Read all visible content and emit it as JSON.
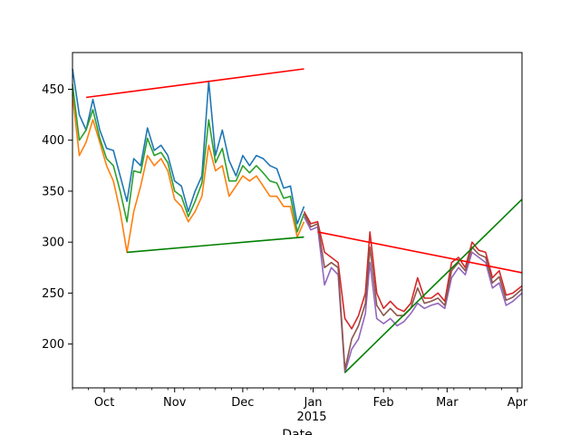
{
  "chart_data": {
    "type": "line",
    "xlabel": "Date",
    "x_year_label": "2015",
    "x_ticks": [
      {
        "label": "Oct",
        "date": "2014-10-01"
      },
      {
        "label": "Nov",
        "date": "2014-11-01"
      },
      {
        "label": "Dec",
        "date": "2014-12-01"
      },
      {
        "label": "Jan",
        "date": "2015-01-01"
      },
      {
        "label": "Feb",
        "date": "2015-02-01"
      },
      {
        "label": "Mar",
        "date": "2015-03-01"
      },
      {
        "label": "Apr",
        "date": "2015-04-01"
      }
    ],
    "xlim": [
      "2014-09-17",
      "2015-04-03"
    ],
    "y_ticks": [
      200,
      250,
      300,
      350,
      400,
      450
    ],
    "ylim": [
      157,
      486
    ],
    "grid": false,
    "series": [
      {
        "color": "#1f77b4",
        "x": [
          "2014-09-17",
          "2014-09-20",
          "2014-09-23",
          "2014-09-26",
          "2014-09-29",
          "2014-10-02",
          "2014-10-05",
          "2014-10-08",
          "2014-10-11",
          "2014-10-14",
          "2014-10-17",
          "2014-10-20",
          "2014-10-23",
          "2014-10-26",
          "2014-10-29",
          "2014-11-01",
          "2014-11-04",
          "2014-11-07",
          "2014-11-10",
          "2014-11-13",
          "2014-11-16",
          "2014-11-19",
          "2014-11-22",
          "2014-11-25",
          "2014-11-28",
          "2014-12-01",
          "2014-12-04",
          "2014-12-07",
          "2014-12-10",
          "2014-12-13",
          "2014-12-16",
          "2014-12-19",
          "2014-12-22",
          "2014-12-25",
          "2014-12-28"
        ],
        "values": [
          470,
          425,
          410,
          440,
          410,
          392,
          390,
          365,
          340,
          382,
          375,
          412,
          390,
          395,
          385,
          360,
          355,
          330,
          350,
          365,
          458,
          385,
          410,
          380,
          365,
          385,
          375,
          385,
          382,
          375,
          372,
          353,
          355,
          318,
          335
        ]
      },
      {
        "color": "#ff7f0e",
        "x": [
          "2014-09-17",
          "2014-09-20",
          "2014-09-23",
          "2014-09-26",
          "2014-09-29",
          "2014-10-02",
          "2014-10-05",
          "2014-10-08",
          "2014-10-11",
          "2014-10-14",
          "2014-10-17",
          "2014-10-20",
          "2014-10-23",
          "2014-10-26",
          "2014-10-29",
          "2014-11-01",
          "2014-11-04",
          "2014-11-07",
          "2014-11-10",
          "2014-11-13",
          "2014-11-16",
          "2014-11-19",
          "2014-11-22",
          "2014-11-25",
          "2014-11-28",
          "2014-12-01",
          "2014-12-04",
          "2014-12-07",
          "2014-12-10",
          "2014-12-13",
          "2014-12-16",
          "2014-12-19",
          "2014-12-22",
          "2014-12-25",
          "2014-12-28"
        ],
        "values": [
          445,
          385,
          398,
          420,
          398,
          375,
          360,
          330,
          290,
          330,
          355,
          385,
          375,
          382,
          370,
          342,
          335,
          320,
          330,
          345,
          395,
          370,
          375,
          345,
          355,
          365,
          360,
          365,
          355,
          345,
          345,
          335,
          335,
          305,
          320
        ]
      },
      {
        "color": "#2ca02c",
        "x": [
          "2014-09-17",
          "2014-09-20",
          "2014-09-23",
          "2014-09-26",
          "2014-09-29",
          "2014-10-02",
          "2014-10-05",
          "2014-10-08",
          "2014-10-11",
          "2014-10-14",
          "2014-10-17",
          "2014-10-20",
          "2014-10-23",
          "2014-10-26",
          "2014-10-29",
          "2014-11-01",
          "2014-11-04",
          "2014-11-07",
          "2014-11-10",
          "2014-11-13",
          "2014-11-16",
          "2014-11-19",
          "2014-11-22",
          "2014-11-25",
          "2014-11-28",
          "2014-12-01",
          "2014-12-04",
          "2014-12-07",
          "2014-12-10",
          "2014-12-13",
          "2014-12-16",
          "2014-12-19",
          "2014-12-22",
          "2014-12-25",
          "2014-12-28"
        ],
        "values": [
          455,
          400,
          410,
          430,
          402,
          382,
          375,
          350,
          320,
          370,
          368,
          402,
          385,
          388,
          378,
          350,
          345,
          325,
          340,
          358,
          420,
          378,
          392,
          360,
          360,
          375,
          368,
          375,
          368,
          360,
          358,
          343,
          345,
          310,
          328
        ]
      },
      {
        "color": "#d62728",
        "x": [
          "2014-12-28",
          "2014-12-31",
          "2015-01-03",
          "2015-01-06",
          "2015-01-09",
          "2015-01-12",
          "2015-01-15",
          "2015-01-18",
          "2015-01-21",
          "2015-01-24",
          "2015-01-26",
          "2015-01-29",
          "2015-02-01",
          "2015-02-04",
          "2015-02-07",
          "2015-02-10",
          "2015-02-13",
          "2015-02-16",
          "2015-02-19",
          "2015-02-22",
          "2015-02-25",
          "2015-02-28",
          "2015-03-03",
          "2015-03-06",
          "2015-03-09",
          "2015-03-12",
          "2015-03-15",
          "2015-03-18",
          "2015-03-21",
          "2015-03-24",
          "2015-03-27",
          "2015-03-30",
          "2015-04-03"
        ],
        "values": [
          330,
          318,
          320,
          290,
          285,
          280,
          225,
          215,
          228,
          250,
          310,
          250,
          235,
          242,
          235,
          232,
          240,
          265,
          245,
          245,
          250,
          242,
          280,
          285,
          275,
          300,
          292,
          290,
          265,
          272,
          248,
          250,
          257
        ]
      },
      {
        "color": "#9467bd",
        "x": [
          "2014-12-28",
          "2014-12-31",
          "2015-01-03",
          "2015-01-06",
          "2015-01-09",
          "2015-01-12",
          "2015-01-15",
          "2015-01-18",
          "2015-01-21",
          "2015-01-24",
          "2015-01-26",
          "2015-01-29",
          "2015-02-01",
          "2015-02-04",
          "2015-02-07",
          "2015-02-10",
          "2015-02-13",
          "2015-02-16",
          "2015-02-19",
          "2015-02-22",
          "2015-02-25",
          "2015-02-28",
          "2015-03-03",
          "2015-03-06",
          "2015-03-09",
          "2015-03-12",
          "2015-03-15",
          "2015-03-18",
          "2015-03-21",
          "2015-03-24",
          "2015-03-27",
          "2015-03-30",
          "2015-04-03"
        ],
        "values": [
          325,
          312,
          315,
          258,
          275,
          268,
          172,
          195,
          205,
          230,
          280,
          225,
          220,
          225,
          218,
          222,
          230,
          240,
          235,
          238,
          240,
          235,
          265,
          275,
          268,
          290,
          285,
          280,
          255,
          260,
          238,
          242,
          250
        ]
      },
      {
        "color": "#8c564b",
        "x": [
          "2014-12-28",
          "2014-12-31",
          "2015-01-03",
          "2015-01-06",
          "2015-01-09",
          "2015-01-12",
          "2015-01-15",
          "2015-01-18",
          "2015-01-21",
          "2015-01-24",
          "2015-01-26",
          "2015-01-29",
          "2015-02-01",
          "2015-02-04",
          "2015-02-07",
          "2015-02-10",
          "2015-02-13",
          "2015-02-16",
          "2015-02-19",
          "2015-02-22",
          "2015-02-25",
          "2015-02-28",
          "2015-03-03",
          "2015-03-06",
          "2015-03-09",
          "2015-03-12",
          "2015-03-15",
          "2015-03-18",
          "2015-03-21",
          "2015-03-24",
          "2015-03-27",
          "2015-03-30",
          "2015-04-03"
        ],
        "values": [
          328,
          315,
          318,
          275,
          280,
          275,
          175,
          205,
          218,
          240,
          295,
          238,
          228,
          235,
          228,
          228,
          235,
          255,
          240,
          242,
          245,
          238,
          272,
          280,
          272,
          295,
          288,
          285,
          260,
          266,
          243,
          246,
          254
        ]
      }
    ],
    "trend_lines": [
      {
        "color": "#ff0000",
        "x": [
          "2014-09-23",
          "2014-12-28"
        ],
        "values": [
          442,
          470
        ]
      },
      {
        "color": "#008000",
        "x": [
          "2014-10-11",
          "2014-12-28"
        ],
        "values": [
          290,
          305
        ]
      },
      {
        "color": "#ff0000",
        "x": [
          "2015-01-03",
          "2015-04-03"
        ],
        "values": [
          310,
          270
        ]
      },
      {
        "color": "#008000",
        "x": [
          "2015-01-15",
          "2015-04-03"
        ],
        "values": [
          172,
          342
        ]
      }
    ]
  }
}
